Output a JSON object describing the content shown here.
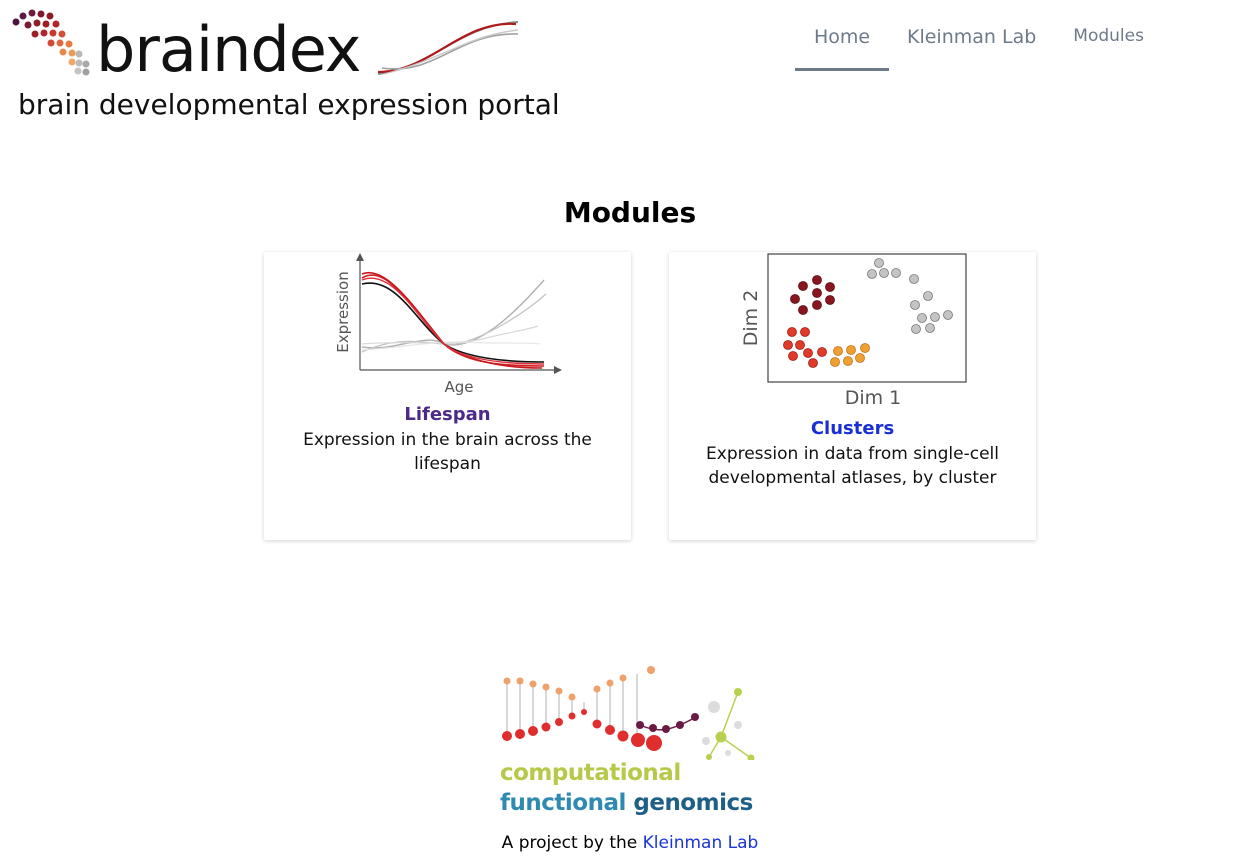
{
  "header": {
    "logo_word": "braindex",
    "logo_subtitle": "brain developmental expression portal"
  },
  "nav": {
    "items": [
      {
        "label": "Home",
        "active": true
      },
      {
        "label": "Kleinman Lab",
        "active": false
      },
      {
        "label": "Modules",
        "active": false
      }
    ]
  },
  "main": {
    "title": "Modules",
    "cards": [
      {
        "name": "Lifespan",
        "description": "Expression in the brain across the lifespan",
        "name_color": "#4b2a8a",
        "icon": {
          "xlabel": "Age",
          "ylabel": "Expression"
        }
      },
      {
        "name": "Clusters",
        "description": "Expression in data from single-cell developmental atlases, by cluster",
        "name_color": "#1a2fd4",
        "icon": {
          "xlabel": "Dim 1",
          "ylabel": "Dim 2"
        }
      }
    ]
  },
  "footer": {
    "org_line1": "computational",
    "org_line2a": "functional",
    "org_line2b": "genomics",
    "credit_prefix": "A project by the",
    "credit_link": "Kleinman Lab"
  },
  "colors": {
    "nav_text": "#6c7a8a",
    "lifespan_accent": "#4b2a8a",
    "clusters_accent": "#1a2fd4",
    "link": "#1a35d6"
  }
}
